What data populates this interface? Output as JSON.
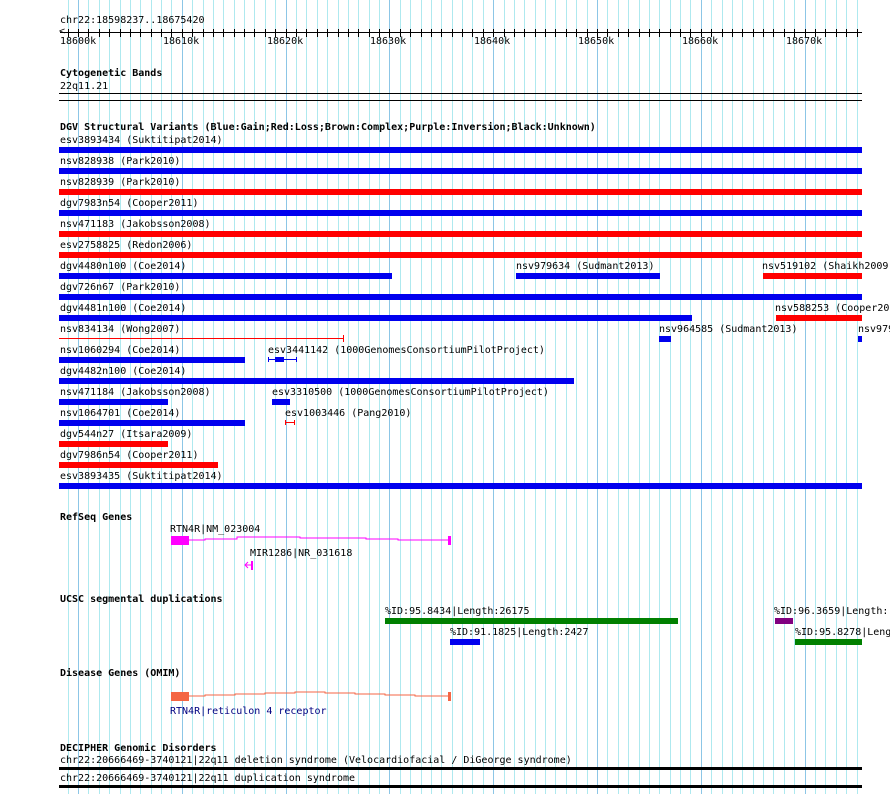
{
  "ruler": {
    "range": "chr22:18598237..18675420",
    "ticks": [
      "18600k",
      "18610k",
      "18620k",
      "18630k",
      "18640k",
      "18650k",
      "18660k",
      "18670k"
    ]
  },
  "cyto": {
    "title": "Cytogenetic Bands",
    "band": "22q11.21"
  },
  "dgv": {
    "title": "DGV Structural Variants (Blue:Gain;Red:Loss;Brown:Complex;Purple:Inversion;Black:Unknown)",
    "items": [
      "esv3893434 (Suktitipat2014)",
      "nsv828938 (Park2010)",
      "nsv828939 (Park2010)",
      "dgv7983n54 (Cooper2011)",
      "nsv471183 (Jakobsson2008)",
      "esv2758825 (Redon2006)",
      "dgv4480n100 (Coe2014)",
      "nsv979634 (Sudmant2013)",
      "nsv519102 (Shaikh2009",
      "dgv726n67 (Park2010)",
      "dgv4481n100 (Coe2014)",
      "nsv588253 (Cooper20",
      "nsv834134 (Wong2007)",
      "nsv964585 (Sudmant2013)",
      "nsv979",
      "nsv1060294 (Coe2014)",
      "esv3441142 (1000GenomesConsortiumPilotProject)",
      "dgv4482n100 (Coe2014)",
      "nsv471184 (Jakobsson2008)",
      "esv3310500 (1000GenomesConsortiumPilotProject)",
      "nsv1064701 (Coe2014)",
      "esv1003446 (Pang2010)",
      "dgv544n27 (Itsara2009)",
      "dgv7986n54 (Cooper2011)",
      "esv3893435 (Suktitipat2014)"
    ]
  },
  "refseq": {
    "title": "RefSeq Genes",
    "genes": [
      "RTN4R|NM_023004",
      "MIR1286|NR_031618"
    ]
  },
  "segdup": {
    "title": "UCSC segmental duplications",
    "items": [
      "%ID:95.8434|Length:26175",
      "%ID:96.3659|Length:",
      "%ID:91.1825|Length:2427",
      "%ID:95.8278|Leng"
    ]
  },
  "omim": {
    "title": "Disease Genes (OMIM)",
    "gene": "RTN4R|reticulon 4 receptor"
  },
  "decipher": {
    "title": "DECIPHER Genomic Disorders",
    "items": [
      "chr22:20666469-3740121|22q11 deletion syndrome (Velocardiofacial / DiGeorge syndrome)",
      "chr22:20666469-3740121|22q11 duplication syndrome"
    ]
  },
  "colors": {
    "gain": "#0000ee",
    "loss": "#ff0000",
    "segdup_green": "#008000",
    "segdup_purple": "#800080",
    "refseq": "#ff00ff",
    "omim": "#f46644",
    "grid": "#aee9ef"
  }
}
